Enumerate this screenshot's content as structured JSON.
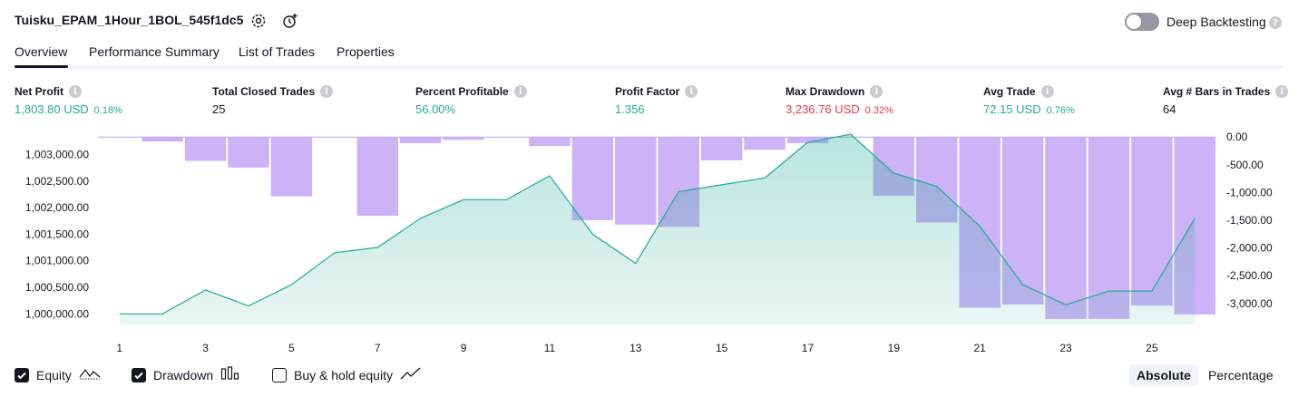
{
  "header": {
    "title": "Tuisku_EPAM_1Hour_1BOL_545f1dc5",
    "deep_backtesting_label": "Deep Backtesting",
    "deep_backtesting_on": false
  },
  "tabs": [
    {
      "label": "Overview",
      "active": true
    },
    {
      "label": "Performance Summary",
      "active": false
    },
    {
      "label": "List of Trades",
      "active": false
    },
    {
      "label": "Properties",
      "active": false
    }
  ],
  "stats": [
    {
      "label": "Net Profit",
      "value": "1,803.80 USD",
      "pct": "0.18%",
      "color": "#22ab94"
    },
    {
      "label": "Total Closed Trades",
      "value": "25",
      "pct": "",
      "color": "#131722"
    },
    {
      "label": "Percent Profitable",
      "value": "56.00%",
      "pct": "",
      "color": "#22ab94"
    },
    {
      "label": "Profit Factor",
      "value": "1.356",
      "pct": "",
      "color": "#22ab94"
    },
    {
      "label": "Max Drawdown",
      "value": "3,236.76 USD",
      "pct": "0.32%",
      "color": "#f23645"
    },
    {
      "label": "Avg Trade",
      "value": "72.15 USD",
      "pct": "0.76%",
      "color": "#22ab94"
    },
    {
      "label": "Avg # Bars in Trades",
      "value": "64",
      "pct": "",
      "color": "#131722"
    }
  ],
  "chart_data": {
    "type": "area",
    "x": [
      1,
      2,
      3,
      4,
      5,
      6,
      7,
      8,
      9,
      10,
      11,
      12,
      13,
      14,
      15,
      16,
      17,
      18,
      19,
      20,
      21,
      22,
      23,
      24,
      25,
      26
    ],
    "x_ticks": [
      "1",
      "3",
      "5",
      "7",
      "9",
      "11",
      "13",
      "15",
      "17",
      "19",
      "21",
      "23",
      "25"
    ],
    "left_ticks": [
      "1,003,000.00",
      "1,002,500.00",
      "1,002,000.00",
      "1,001,500.00",
      "1,001,000.00",
      "1,000,500.00",
      "1,000,000.00"
    ],
    "right_ticks": [
      "0.00",
      "-500.00",
      "-1,000.00",
      "-1,500.00",
      "-2,000.00",
      "-2,500.00",
      "-3,000.00"
    ],
    "left_ylim": [
      999800,
      1003350
    ],
    "right_ylim": [
      -3380,
      20
    ],
    "equity": {
      "name": "Equity",
      "color": "#22ab94",
      "values": [
        1000000,
        1000000,
        1000450,
        1000150,
        1000550,
        1001150,
        1001250,
        1001800,
        1002150,
        1002150,
        1002600,
        1001500,
        1000950,
        1002300,
        1002430,
        1002560,
        1003230,
        1003380,
        1002650,
        1002400,
        1001650,
        1000550,
        1000170,
        1000430,
        1000430,
        1001800
      ]
    },
    "drawdown": {
      "name": "Drawdown",
      "color": "#c4a4f7",
      "values": [
        0,
        -80,
        -430,
        -550,
        -1070,
        0,
        -1420,
        -110,
        -50,
        0,
        -160,
        -1500,
        -1580,
        -1620,
        -420,
        -230,
        -110,
        0,
        -1060,
        -1540,
        -3080,
        -3020,
        -3280,
        -3280,
        -3040,
        -3200
      ]
    },
    "legend_position": "bottom-left"
  },
  "legend": [
    {
      "label": "Equity",
      "checked": true
    },
    {
      "label": "Drawdown",
      "checked": true
    },
    {
      "label": "Buy & hold equity",
      "checked": false
    }
  ],
  "mode": {
    "absolute_label": "Absolute",
    "percentage_label": "Percentage",
    "selected": "Absolute"
  }
}
